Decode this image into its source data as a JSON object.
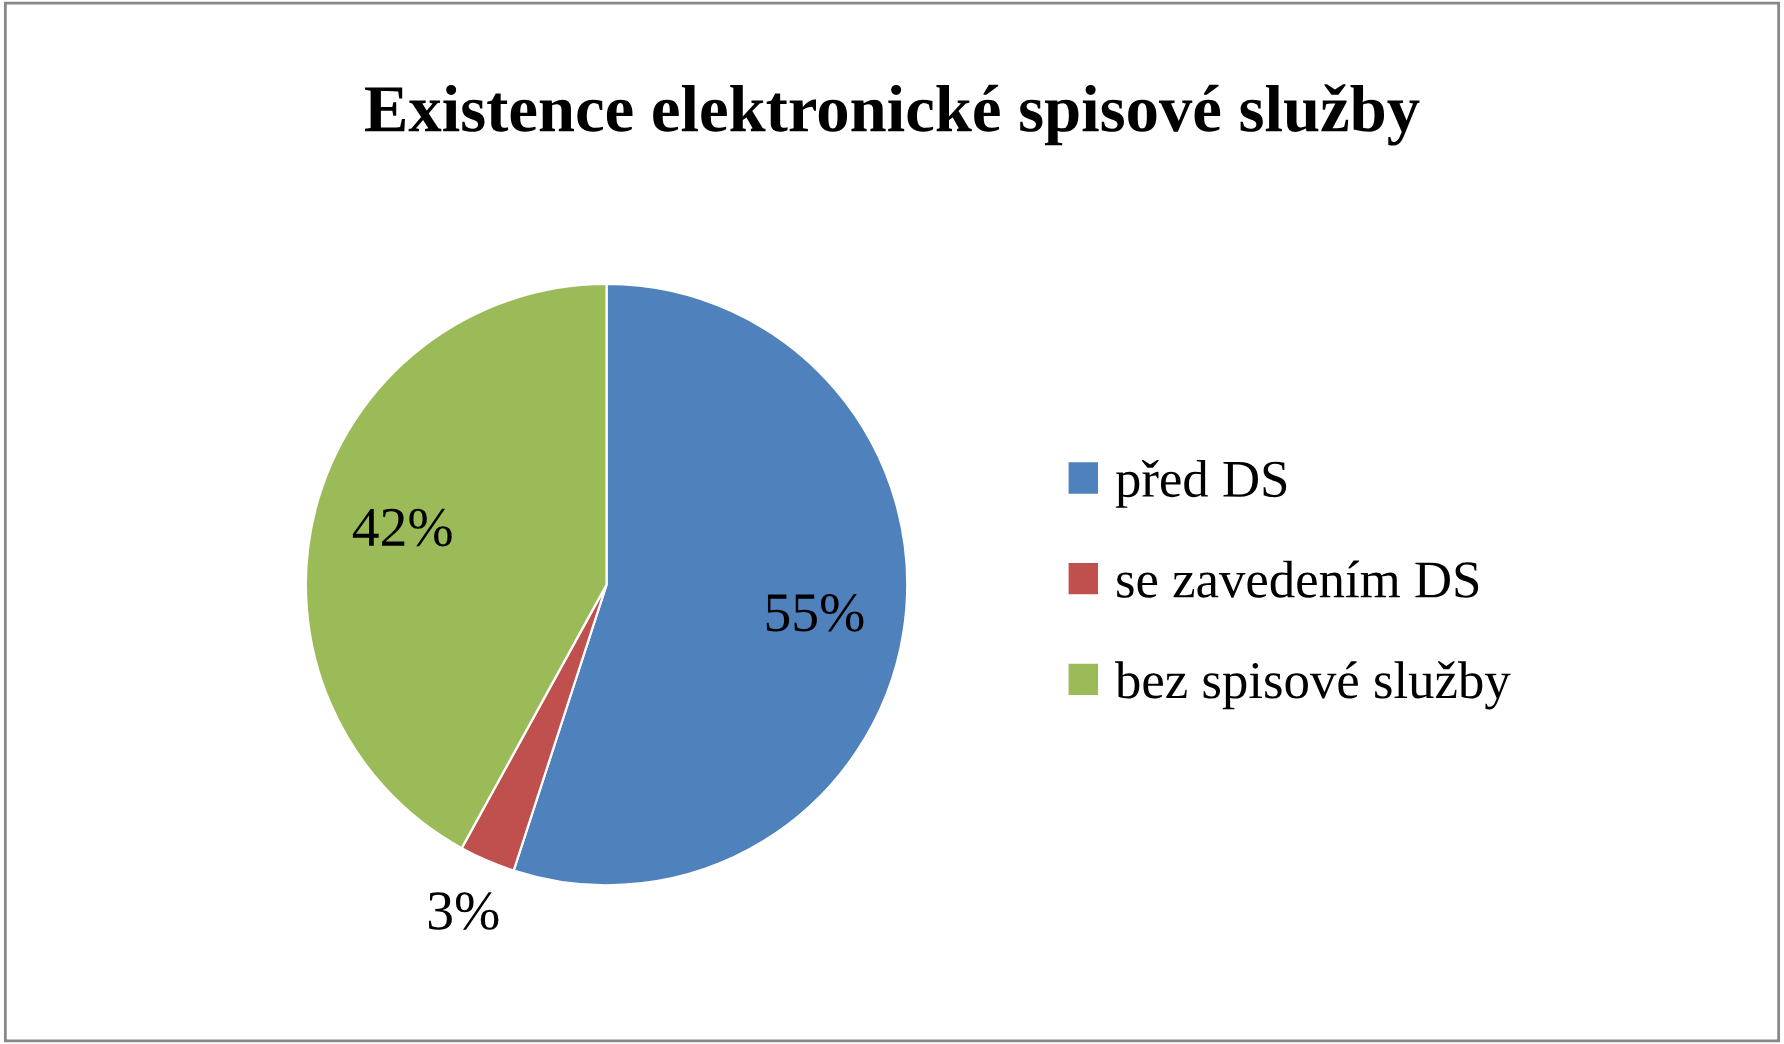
{
  "chart_data": {
    "type": "pie",
    "title": "Existence elektronické spisové služby",
    "categories": [
      "před DS",
      "se zavedením DS",
      "bez spisové služby"
    ],
    "values": [
      55,
      3,
      42
    ],
    "colors": [
      "#4f81bd",
      "#c0504d",
      "#9bbb59"
    ],
    "value_labels": [
      "55%",
      "3%",
      "42%"
    ],
    "legend": "right"
  }
}
